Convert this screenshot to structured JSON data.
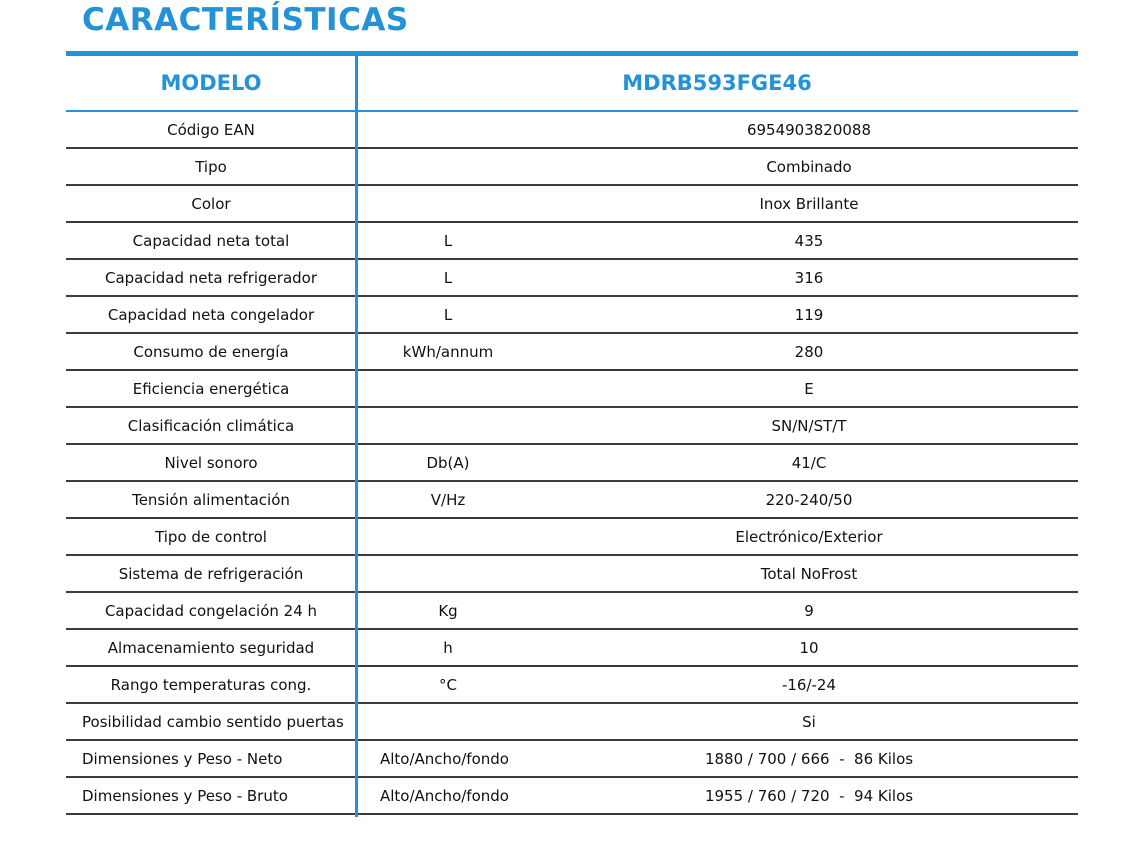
{
  "title": "CARACTERÍSTICAS",
  "header": {
    "label": "MODELO",
    "model": "MDRB593FGE46"
  },
  "rows": [
    {
      "label": "Código EAN",
      "unit": "",
      "value": "6954903820088"
    },
    {
      "label": "Tipo",
      "unit": "",
      "value": "Combinado"
    },
    {
      "label": "Color",
      "unit": "",
      "value": "Inox Brillante"
    },
    {
      "label": "Capacidad neta total",
      "unit": "L",
      "value": "435"
    },
    {
      "label": "Capacidad neta refrigerador",
      "unit": "L",
      "value": "316"
    },
    {
      "label": "Capacidad neta congelador",
      "unit": "L",
      "value": "119"
    },
    {
      "label": "Consumo de energía",
      "unit": "kWh/annum",
      "value": "280"
    },
    {
      "label": "Eficiencia energética",
      "unit": "",
      "value": "E"
    },
    {
      "label": "Clasificación climática",
      "unit": "",
      "value": "SN/N/ST/T"
    },
    {
      "label": "Nivel sonoro",
      "unit": "Db(A)",
      "value": "41/C"
    },
    {
      "label": "Tensión alimentación",
      "unit": "V/Hz",
      "value": "220-240/50"
    },
    {
      "label": "Tipo de control",
      "unit": "",
      "value": "Electrónico/Exterior"
    },
    {
      "label": "Sistema de refrigeración",
      "unit": "",
      "value": "Total NoFrost"
    },
    {
      "label": "Capacidad congelación 24 h",
      "unit": "Kg",
      "value": "9"
    },
    {
      "label": "Almacenamiento seguridad",
      "unit": "h",
      "value": "10"
    },
    {
      "label": "Rango temperaturas cong.",
      "unit": "°C",
      "value": "-16/-24"
    },
    {
      "label": "Posibilidad cambio sentido puertas",
      "unit": "",
      "value": "Si"
    },
    {
      "label": "Dimensiones y Peso - Neto",
      "unit": "Alto/Ancho/fondo",
      "value": "1880 / 700 / 666  -  86 Kilos"
    },
    {
      "label": "Dimensiones y Peso - Bruto",
      "unit": "Alto/Ancho/fondo",
      "value": "1955 / 760 / 720  -  94 Kilos"
    }
  ],
  "colors": {
    "accent": "#2392d6",
    "rule": "#3c3c3c"
  }
}
